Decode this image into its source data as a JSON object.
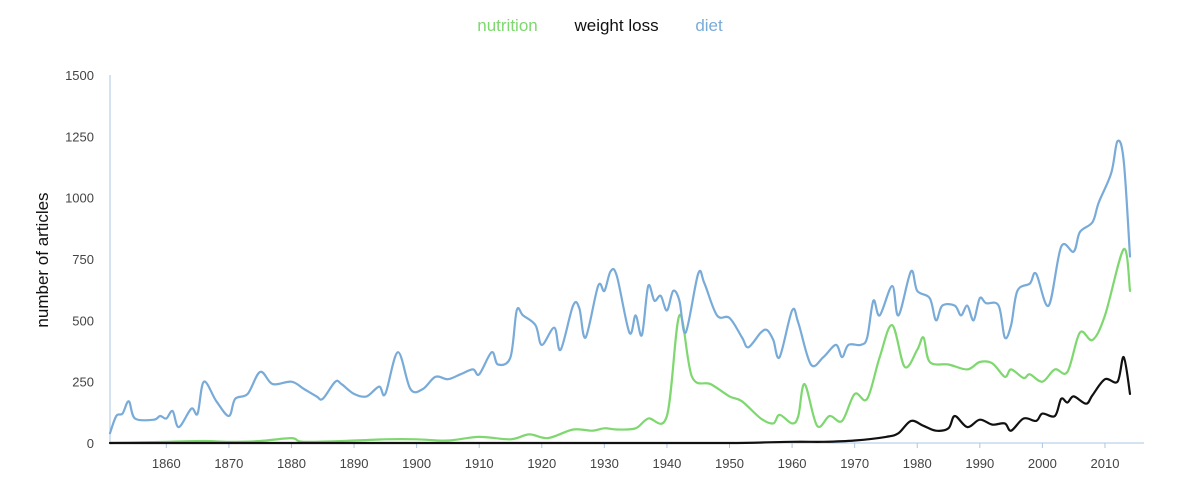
{
  "chart_data": {
    "type": "line",
    "title": "",
    "xlabel": "",
    "ylabel": "number of articles",
    "xlim": [
      1851,
      2014
    ],
    "ylim": [
      0,
      1500
    ],
    "x_ticks": [
      1860,
      1870,
      1880,
      1890,
      1900,
      1910,
      1920,
      1930,
      1940,
      1950,
      1960,
      1970,
      1980,
      1990,
      2000,
      2010
    ],
    "y_ticks": [
      0,
      250,
      500,
      750,
      1000,
      1250,
      1500
    ],
    "grid": false,
    "legend_position": "top-center",
    "series": [
      {
        "name": "nutrition",
        "color": "#7ed86f",
        "points": [
          [
            1851,
            0
          ],
          [
            1855,
            2
          ],
          [
            1860,
            5
          ],
          [
            1866,
            8
          ],
          [
            1870,
            5
          ],
          [
            1875,
            8
          ],
          [
            1880,
            20
          ],
          [
            1882,
            5
          ],
          [
            1890,
            10
          ],
          [
            1895,
            15
          ],
          [
            1900,
            15
          ],
          [
            1905,
            10
          ],
          [
            1910,
            25
          ],
          [
            1915,
            15
          ],
          [
            1918,
            35
          ],
          [
            1921,
            20
          ],
          [
            1925,
            55
          ],
          [
            1928,
            50
          ],
          [
            1930,
            60
          ],
          [
            1932,
            55
          ],
          [
            1935,
            60
          ],
          [
            1937,
            100
          ],
          [
            1940,
            110
          ],
          [
            1942,
            520
          ],
          [
            1944,
            270
          ],
          [
            1947,
            240
          ],
          [
            1950,
            190
          ],
          [
            1952,
            170
          ],
          [
            1955,
            100
          ],
          [
            1957,
            80
          ],
          [
            1958,
            115
          ],
          [
            1960,
            80
          ],
          [
            1961,
            110
          ],
          [
            1962,
            240
          ],
          [
            1964,
            70
          ],
          [
            1966,
            110
          ],
          [
            1968,
            90
          ],
          [
            1970,
            200
          ],
          [
            1972,
            180
          ],
          [
            1974,
            350
          ],
          [
            1976,
            480
          ],
          [
            1978,
            310
          ],
          [
            1980,
            380
          ],
          [
            1981,
            430
          ],
          [
            1982,
            330
          ],
          [
            1985,
            320
          ],
          [
            1988,
            300
          ],
          [
            1990,
            330
          ],
          [
            1992,
            325
          ],
          [
            1994,
            270
          ],
          [
            1995,
            300
          ],
          [
            1997,
            265
          ],
          [
            1998,
            280
          ],
          [
            2000,
            250
          ],
          [
            2002,
            300
          ],
          [
            2004,
            290
          ],
          [
            2006,
            450
          ],
          [
            2008,
            420
          ],
          [
            2010,
            520
          ],
          [
            2013,
            790
          ],
          [
            2014,
            620
          ]
        ]
      },
      {
        "name": "weight loss",
        "color": "#111111",
        "points": [
          [
            1851,
            0
          ],
          [
            1900,
            0
          ],
          [
            1930,
            0
          ],
          [
            1950,
            0
          ],
          [
            1960,
            5
          ],
          [
            1965,
            5
          ],
          [
            1970,
            10
          ],
          [
            1975,
            25
          ],
          [
            1977,
            40
          ],
          [
            1979,
            90
          ],
          [
            1981,
            70
          ],
          [
            1983,
            50
          ],
          [
            1985,
            60
          ],
          [
            1986,
            110
          ],
          [
            1988,
            65
          ],
          [
            1990,
            95
          ],
          [
            1992,
            75
          ],
          [
            1994,
            80
          ],
          [
            1995,
            50
          ],
          [
            1997,
            100
          ],
          [
            1999,
            90
          ],
          [
            2000,
            120
          ],
          [
            2002,
            110
          ],
          [
            2003,
            180
          ],
          [
            2004,
            165
          ],
          [
            2005,
            190
          ],
          [
            2007,
            160
          ],
          [
            2008,
            195
          ],
          [
            2010,
            260
          ],
          [
            2012,
            250
          ],
          [
            2013,
            350
          ],
          [
            2014,
            200
          ]
        ]
      },
      {
        "name": "diet",
        "color": "#79abd9",
        "points": [
          [
            1851,
            40
          ],
          [
            1852,
            110
          ],
          [
            1853,
            120
          ],
          [
            1854,
            170
          ],
          [
            1855,
            100
          ],
          [
            1858,
            95
          ],
          [
            1859,
            110
          ],
          [
            1860,
            100
          ],
          [
            1861,
            130
          ],
          [
            1862,
            65
          ],
          [
            1864,
            140
          ],
          [
            1865,
            120
          ],
          [
            1866,
            250
          ],
          [
            1868,
            170
          ],
          [
            1870,
            110
          ],
          [
            1871,
            180
          ],
          [
            1873,
            200
          ],
          [
            1875,
            290
          ],
          [
            1877,
            240
          ],
          [
            1880,
            250
          ],
          [
            1882,
            220
          ],
          [
            1884,
            190
          ],
          [
            1885,
            180
          ],
          [
            1887,
            250
          ],
          [
            1888,
            240
          ],
          [
            1890,
            200
          ],
          [
            1892,
            190
          ],
          [
            1894,
            230
          ],
          [
            1895,
            200
          ],
          [
            1897,
            370
          ],
          [
            1899,
            220
          ],
          [
            1901,
            220
          ],
          [
            1903,
            270
          ],
          [
            1905,
            260
          ],
          [
            1907,
            280
          ],
          [
            1909,
            300
          ],
          [
            1910,
            280
          ],
          [
            1912,
            370
          ],
          [
            1913,
            320
          ],
          [
            1915,
            350
          ],
          [
            1916,
            540
          ],
          [
            1917,
            520
          ],
          [
            1919,
            480
          ],
          [
            1920,
            400
          ],
          [
            1922,
            470
          ],
          [
            1923,
            380
          ],
          [
            1925,
            560
          ],
          [
            1926,
            550
          ],
          [
            1927,
            430
          ],
          [
            1929,
            640
          ],
          [
            1930,
            620
          ],
          [
            1931,
            700
          ],
          [
            1932,
            680
          ],
          [
            1934,
            450
          ],
          [
            1935,
            520
          ],
          [
            1936,
            440
          ],
          [
            1937,
            640
          ],
          [
            1938,
            580
          ],
          [
            1939,
            600
          ],
          [
            1940,
            540
          ],
          [
            1941,
            620
          ],
          [
            1942,
            580
          ],
          [
            1943,
            450
          ],
          [
            1945,
            690
          ],
          [
            1946,
            650
          ],
          [
            1948,
            520
          ],
          [
            1950,
            510
          ],
          [
            1952,
            430
          ],
          [
            1953,
            390
          ],
          [
            1955,
            450
          ],
          [
            1956,
            460
          ],
          [
            1957,
            420
          ],
          [
            1958,
            350
          ],
          [
            1960,
            540
          ],
          [
            1961,
            490
          ],
          [
            1963,
            320
          ],
          [
            1965,
            350
          ],
          [
            1967,
            400
          ],
          [
            1968,
            350
          ],
          [
            1969,
            400
          ],
          [
            1971,
            400
          ],
          [
            1972,
            430
          ],
          [
            1973,
            580
          ],
          [
            1974,
            520
          ],
          [
            1976,
            640
          ],
          [
            1977,
            520
          ],
          [
            1979,
            700
          ],
          [
            1980,
            620
          ],
          [
            1982,
            590
          ],
          [
            1983,
            500
          ],
          [
            1984,
            560
          ],
          [
            1986,
            560
          ],
          [
            1987,
            520
          ],
          [
            1988,
            560
          ],
          [
            1989,
            500
          ],
          [
            1990,
            590
          ],
          [
            1991,
            570
          ],
          [
            1993,
            560
          ],
          [
            1994,
            430
          ],
          [
            1995,
            480
          ],
          [
            1996,
            620
          ],
          [
            1998,
            650
          ],
          [
            1999,
            690
          ],
          [
            2001,
            560
          ],
          [
            2003,
            800
          ],
          [
            2005,
            780
          ],
          [
            2006,
            860
          ],
          [
            2008,
            900
          ],
          [
            2009,
            980
          ],
          [
            2011,
            1100
          ],
          [
            2012,
            1230
          ],
          [
            2013,
            1150
          ],
          [
            2014,
            760
          ]
        ]
      }
    ]
  }
}
